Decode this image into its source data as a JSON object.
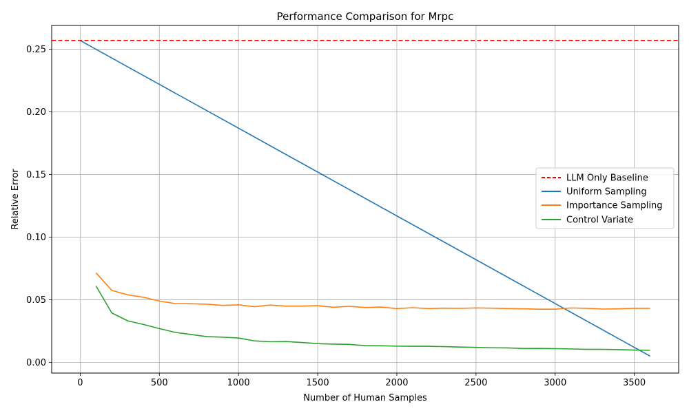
{
  "chart_data": {
    "type": "line",
    "title": "Performance Comparison for Mrpc",
    "xlabel": "Number of Human Samples",
    "ylabel": "Relative Error",
    "xlim": [
      -180,
      3780
    ],
    "ylim": [
      -0.0085,
      0.269
    ],
    "xticks": [
      0,
      500,
      1000,
      1500,
      2000,
      2500,
      3000,
      3500
    ],
    "yticks": [
      0.0,
      0.05,
      0.1,
      0.15,
      0.2,
      0.25
    ],
    "xtick_labels": [
      "0",
      "500",
      "1000",
      "1500",
      "2000",
      "2500",
      "3000",
      "3500"
    ],
    "ytick_labels": [
      "0.00",
      "0.05",
      "0.10",
      "0.15",
      "0.20",
      "0.25"
    ],
    "grid": true,
    "legend_position": "center-right",
    "baseline": {
      "name": "LLM Only Baseline",
      "y": 0.257,
      "color": "#ff0000",
      "style": "dashed"
    },
    "series": [
      {
        "name": "Uniform Sampling",
        "color": "#1f77b4",
        "x": [
          0,
          600,
          1000,
          1800,
          3600
        ],
        "values": [
          0.257,
          0.215,
          0.187,
          0.131,
          0.005
        ]
      },
      {
        "name": "Importance Sampling",
        "color": "#ff7f0e",
        "x": [
          100,
          200,
          300,
          400,
          500,
          600,
          700,
          800,
          900,
          1000,
          1100,
          1200,
          1300,
          1400,
          1500,
          1600,
          1700,
          1800,
          1900,
          2000,
          2100,
          2200,
          2300,
          2400,
          2500,
          2600,
          2700,
          2800,
          2900,
          3000,
          3100,
          3200,
          3300,
          3400,
          3500,
          3600
        ],
        "values": [
          0.0715,
          0.0575,
          0.054,
          0.052,
          0.049,
          0.047,
          0.0468,
          0.0465,
          0.0455,
          0.046,
          0.0445,
          0.0458,
          0.045,
          0.045,
          0.0453,
          0.044,
          0.0448,
          0.0438,
          0.0442,
          0.043,
          0.0437,
          0.043,
          0.0433,
          0.0432,
          0.0435,
          0.0433,
          0.043,
          0.0428,
          0.0425,
          0.0425,
          0.0435,
          0.0432,
          0.0426,
          0.0428,
          0.0432,
          0.0432
        ]
      },
      {
        "name": "Control Variate",
        "color": "#2ca02c",
        "x": [
          100,
          200,
          300,
          400,
          500,
          600,
          700,
          800,
          900,
          1000,
          1100,
          1200,
          1300,
          1400,
          1500,
          1600,
          1700,
          1800,
          1900,
          2000,
          2100,
          2200,
          2300,
          2400,
          2500,
          2600,
          2700,
          2800,
          2900,
          3000,
          3100,
          3200,
          3300,
          3400,
          3500,
          3600
        ],
        "values": [
          0.061,
          0.0395,
          0.0332,
          0.0303,
          0.027,
          0.024,
          0.0223,
          0.0206,
          0.0202,
          0.0195,
          0.0172,
          0.0165,
          0.0167,
          0.0159,
          0.015,
          0.0146,
          0.0144,
          0.0134,
          0.0133,
          0.013,
          0.0129,
          0.0129,
          0.0126,
          0.0123,
          0.012,
          0.0117,
          0.0116,
          0.0111,
          0.0112,
          0.011,
          0.0108,
          0.0104,
          0.0104,
          0.0102,
          0.0099,
          0.0097
        ]
      }
    ]
  }
}
